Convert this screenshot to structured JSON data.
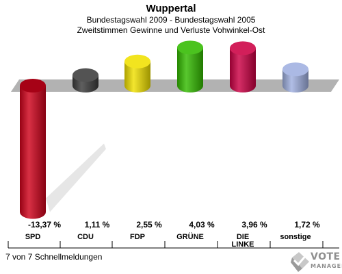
{
  "chart_data": {
    "type": "bar",
    "title": "Wuppertal",
    "subtitle_lines": [
      "Bundestagswahl 2009 - Bundestagswahl 2005",
      "Zweitstimmen Gewinne und Verluste Vohwinkel-Ost"
    ],
    "categories": [
      "SPD",
      "CDU",
      "FDP",
      "GRÜNE",
      "DIE LINKE",
      "sonstige"
    ],
    "category_lines": [
      [
        "SPD"
      ],
      [
        "CDU"
      ],
      [
        "FDP"
      ],
      [
        "GRÜNE"
      ],
      [
        "DIE",
        "LINKE"
      ],
      [
        "sonstige"
      ]
    ],
    "values": [
      -13.37,
      1.11,
      2.55,
      4.03,
      3.96,
      1.72
    ],
    "value_labels": [
      "-13,37 %",
      "1,11 %",
      "2,55 %",
      "4,03 %",
      "3,96 %",
      "1,72 %"
    ],
    "colors": [
      "#d0021b",
      "#3c3c3c",
      "#f0e000",
      "#33bb00",
      "#cc0044",
      "#a0b0e0"
    ],
    "xlabel": "",
    "ylabel": "",
    "grid": false
  },
  "footer": {
    "note": "7 von 7 Schnellmeldungen",
    "brand_line1": "VOTE",
    "brand_line2": "MANAGER"
  }
}
